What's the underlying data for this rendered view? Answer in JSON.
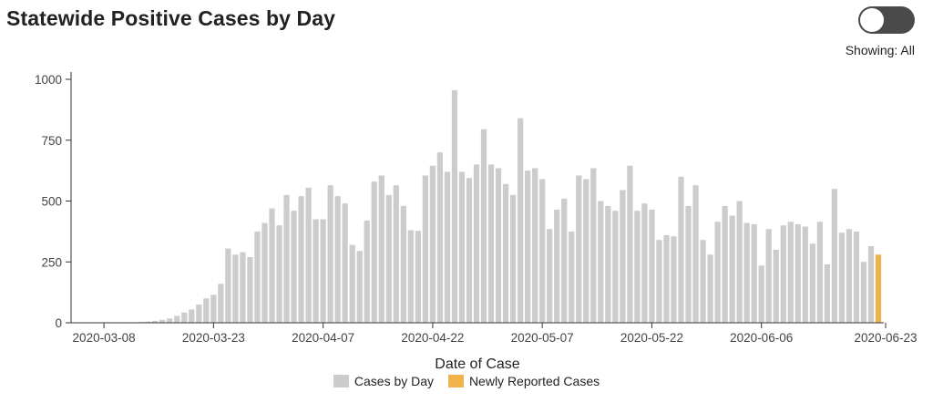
{
  "header": {
    "title": "Statewide Positive Cases by Day",
    "showing_label": "Showing: All"
  },
  "toggle": {
    "state": "off"
  },
  "colors": {
    "cases_by_day": "#cccccc",
    "newly_reported": "#f0b34a",
    "axis": "#333333"
  },
  "chart_data": {
    "type": "bar",
    "xlabel": "Date of Case",
    "ylabel": "",
    "ylim": [
      0,
      1000
    ],
    "yticks": [
      0,
      250,
      500,
      750,
      1000
    ],
    "x_tick_labels": [
      "2020-03-08",
      "2020-03-23",
      "2020-04-07",
      "2020-04-22",
      "2020-05-07",
      "2020-05-22",
      "2020-06-06",
      "2020-06-23"
    ],
    "x_tick_day_index": [
      4,
      19,
      34,
      49,
      64,
      79,
      94,
      111
    ],
    "start_date": "2020-03-04",
    "legend": [
      "Cases by Day",
      "Newly Reported Cases"
    ],
    "series": [
      {
        "name": "Cases by Day",
        "values": [
          0,
          0,
          0,
          1,
          1,
          2,
          1,
          1,
          2,
          3,
          5,
          8,
          12,
          18,
          28,
          42,
          55,
          75,
          100,
          115,
          160,
          305,
          280,
          290,
          270,
          375,
          410,
          470,
          400,
          525,
          460,
          520,
          555,
          425,
          425,
          565,
          520,
          490,
          320,
          295,
          420,
          580,
          605,
          525,
          565,
          480,
          380,
          378,
          605,
          645,
          700,
          620,
          955,
          620,
          595,
          650,
          795,
          650,
          635,
          570,
          525,
          840,
          625,
          635,
          590,
          385,
          465,
          510,
          375,
          605,
          590,
          635,
          500,
          480,
          460,
          545,
          645,
          460,
          490,
          465,
          340,
          360,
          355,
          600,
          480,
          565,
          340,
          280,
          415,
          480,
          440,
          500,
          410,
          405,
          235,
          385,
          300,
          400,
          415,
          405,
          395,
          325,
          415,
          240,
          550,
          370,
          385,
          375,
          250,
          315
        ]
      },
      {
        "name": "Newly Reported Cases",
        "values": [
          280
        ]
      }
    ]
  }
}
